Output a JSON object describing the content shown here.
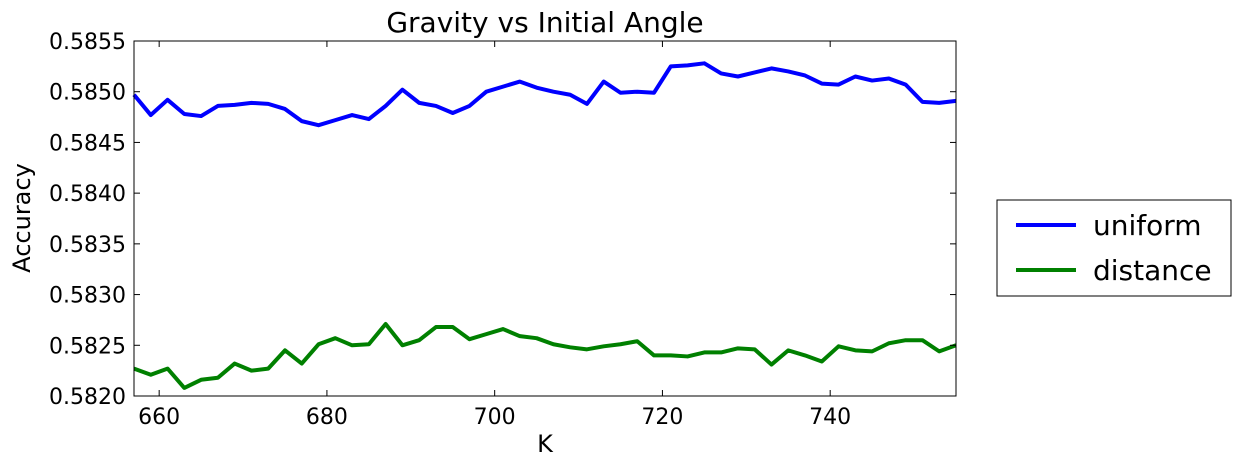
{
  "chart_data": {
    "type": "line",
    "title": "Gravity vs Initial Angle",
    "xlabel": "K",
    "ylabel": "Accuracy",
    "xlim": [
      657,
      755
    ],
    "ylim": [
      0.582,
      0.5855
    ],
    "xticks": [
      660,
      680,
      700,
      720,
      740
    ],
    "xtick_labels": [
      "660",
      "680",
      "700",
      "720",
      "740"
    ],
    "yticks": [
      0.582,
      0.5825,
      0.583,
      0.5835,
      0.584,
      0.5845,
      0.585,
      0.5855
    ],
    "ytick_labels": [
      "0.5820",
      "0.5825",
      "0.5830",
      "0.5835",
      "0.5840",
      "0.5845",
      "0.5850",
      "0.5855"
    ],
    "grid": false,
    "legend_position": "right, outside plot",
    "x": [
      657,
      659,
      661,
      663,
      665,
      667,
      669,
      671,
      673,
      675,
      677,
      679,
      681,
      683,
      685,
      687,
      689,
      691,
      693,
      695,
      697,
      699,
      701,
      703,
      705,
      707,
      709,
      711,
      713,
      715,
      717,
      719,
      721,
      723,
      725,
      727,
      729,
      731,
      733,
      735,
      737,
      739,
      741,
      743,
      745,
      747,
      749,
      751,
      753,
      755
    ],
    "series": [
      {
        "name": "uniform",
        "color": "#0000ff",
        "values": [
          0.58497,
          0.58477,
          0.58492,
          0.58478,
          0.58476,
          0.58486,
          0.58487,
          0.58489,
          0.58488,
          0.58483,
          0.58471,
          0.58467,
          0.58472,
          0.58477,
          0.58473,
          0.58486,
          0.58502,
          0.58489,
          0.58486,
          0.58479,
          0.58486,
          0.585,
          0.58505,
          0.5851,
          0.58504,
          0.585,
          0.58497,
          0.58488,
          0.5851,
          0.58499,
          0.585,
          0.58499,
          0.58525,
          0.58526,
          0.58528,
          0.58518,
          0.58515,
          0.58519,
          0.58523,
          0.5852,
          0.58516,
          0.58508,
          0.58507,
          0.58515,
          0.58511,
          0.58513,
          0.58507,
          0.5849,
          0.58489,
          0.58491
        ]
      },
      {
        "name": "distance",
        "color": "#008000",
        "values": [
          0.58227,
          0.58221,
          0.58227,
          0.58208,
          0.58216,
          0.58218,
          0.58232,
          0.58225,
          0.58227,
          0.58245,
          0.58232,
          0.58251,
          0.58257,
          0.5825,
          0.58251,
          0.58271,
          0.5825,
          0.58255,
          0.58268,
          0.58268,
          0.58256,
          0.58261,
          0.58266,
          0.58259,
          0.58257,
          0.58251,
          0.58248,
          0.58246,
          0.58249,
          0.58251,
          0.58254,
          0.5824,
          0.5824,
          0.58239,
          0.58243,
          0.58243,
          0.58247,
          0.58246,
          0.58231,
          0.58245,
          0.5824,
          0.58234,
          0.58249,
          0.58245,
          0.58244,
          0.58252,
          0.58255,
          0.58255,
          0.58244,
          0.5825
        ]
      }
    ]
  }
}
